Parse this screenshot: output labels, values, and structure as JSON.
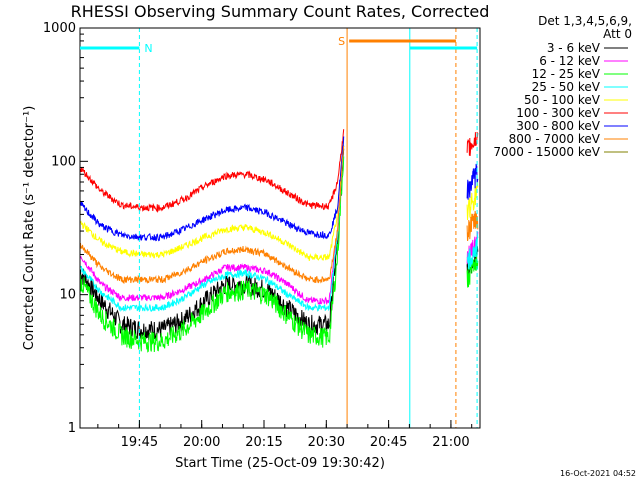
{
  "chart_data": {
    "type": "line",
    "title": "RHESSI Observing Summary Count Rates, Corrected",
    "xlabel": "Start Time (25-Oct-09 19:30:42)",
    "ylabel": "Corrected Count Rate (s⁻¹ detector⁻¹)",
    "y_scale": "log",
    "ylim": [
      1,
      1000
    ],
    "xlim": [
      "19:30:42",
      "21:07"
    ],
    "x_ticks": [
      "19:45",
      "20:00",
      "20:15",
      "20:30",
      "20:45",
      "21:00"
    ],
    "y_ticks": [
      "1",
      "10",
      "100",
      "1000"
    ],
    "legend_header": [
      "Det 1,3,4,5,6,9,",
      "Att 0"
    ],
    "legend_position": "right",
    "series": [
      {
        "name": "3 - 6 keV",
        "color": "#000000",
        "x_minutes": [
          0,
          5,
          10,
          15,
          20,
          25,
          30,
          35,
          40,
          45,
          50,
          55,
          60,
          62,
          63.5
        ],
        "values": [
          15,
          9,
          6,
          5.5,
          5.5,
          6.5,
          9,
          12,
          12,
          11,
          8,
          6,
          6,
          25,
          130
        ]
      },
      {
        "name": "6 - 12 keV",
        "color": "#ff00ff",
        "x_minutes": [
          0,
          5,
          10,
          15,
          20,
          25,
          30,
          35,
          40,
          45,
          50,
          55,
          60,
          62,
          63.5
        ],
        "values": [
          20,
          12,
          9.5,
          9.5,
          9.5,
          11,
          13,
          16,
          16,
          15,
          12,
          9,
          9,
          30,
          140
        ]
      },
      {
        "name": "12 - 25 keV",
        "color": "#00ff00",
        "x_minutes": [
          0,
          5,
          10,
          15,
          20,
          25,
          30,
          35,
          40,
          45,
          50,
          55,
          60,
          62,
          63.5
        ],
        "values": [
          13,
          7,
          5,
          4.5,
          4.5,
          5.5,
          7.5,
          10.5,
          11,
          10,
          7,
          5,
          4.8,
          20,
          120
        ]
      },
      {
        "name": "25 - 50 keV",
        "color": "#00ffff",
        "x_minutes": [
          0,
          5,
          10,
          15,
          20,
          25,
          30,
          35,
          40,
          45,
          50,
          55,
          60,
          62,
          63.5
        ],
        "values": [
          16,
          10.5,
          8,
          8,
          8,
          9.5,
          12,
          14,
          14.5,
          13,
          10,
          8,
          8,
          28,
          135
        ]
      },
      {
        "name": "50 - 100 keV",
        "color": "#ffff00",
        "x_minutes": [
          0,
          5,
          10,
          15,
          20,
          25,
          30,
          35,
          40,
          45,
          50,
          55,
          60,
          62,
          63.5
        ],
        "values": [
          35,
          25,
          21,
          20,
          20,
          23,
          27,
          31,
          32,
          29,
          24,
          19,
          19,
          40,
          150
        ]
      },
      {
        "name": "100 - 300 keV",
        "color": "#ff0000",
        "x_minutes": [
          0,
          5,
          10,
          15,
          20,
          25,
          30,
          35,
          40,
          45,
          50,
          55,
          60,
          62,
          63.5
        ],
        "values": [
          90,
          60,
          47,
          45,
          45,
          52,
          65,
          78,
          80,
          72,
          58,
          47,
          46,
          70,
          170
        ]
      },
      {
        "name": "300 - 800 keV",
        "color": "#0000ff",
        "x_minutes": [
          0,
          5,
          10,
          15,
          20,
          25,
          30,
          35,
          40,
          45,
          50,
          55,
          60,
          62,
          63.5
        ],
        "values": [
          48,
          33,
          28,
          27,
          27,
          31,
          37,
          43,
          45,
          41,
          34,
          29,
          28,
          45,
          150
        ]
      },
      {
        "name": "800 - 7000 keV",
        "color": "#ff8000",
        "x_minutes": [
          0,
          5,
          10,
          15,
          20,
          25,
          30,
          35,
          40,
          45,
          50,
          55,
          60,
          62,
          63.5
        ],
        "values": [
          24,
          16,
          13,
          13,
          13,
          15,
          18,
          21,
          22,
          20,
          16,
          13,
          13,
          30,
          140
        ]
      },
      {
        "name": "7000 - 15000 keV",
        "color": "#808000",
        "x_minutes": [],
        "values": []
      }
    ],
    "annotations": [
      {
        "label": "N",
        "color": "#00ffff",
        "start_minutes": 0,
        "end_minutes": 14.3
      },
      {
        "label": "S",
        "color": "#ff8000",
        "start_minutes": 64.8,
        "end_minutes": 90.5
      }
    ]
  }
}
